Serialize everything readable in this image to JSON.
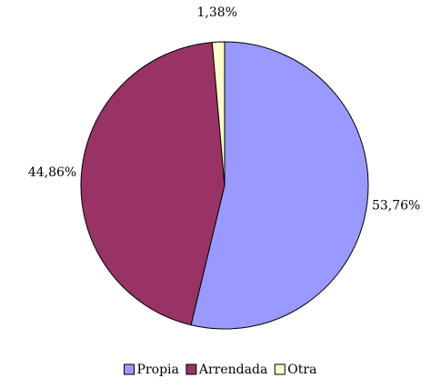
{
  "chart_data": {
    "type": "pie",
    "categories": [
      "Propia",
      "Arrendada",
      "Otra"
    ],
    "values": [
      53.76,
      44.86,
      1.38
    ],
    "value_labels": [
      "53,76%",
      "44,86%",
      "1,38%"
    ],
    "colors": [
      "#9999ff",
      "#993366",
      "#ffffcc"
    ],
    "legend": "bottom"
  }
}
